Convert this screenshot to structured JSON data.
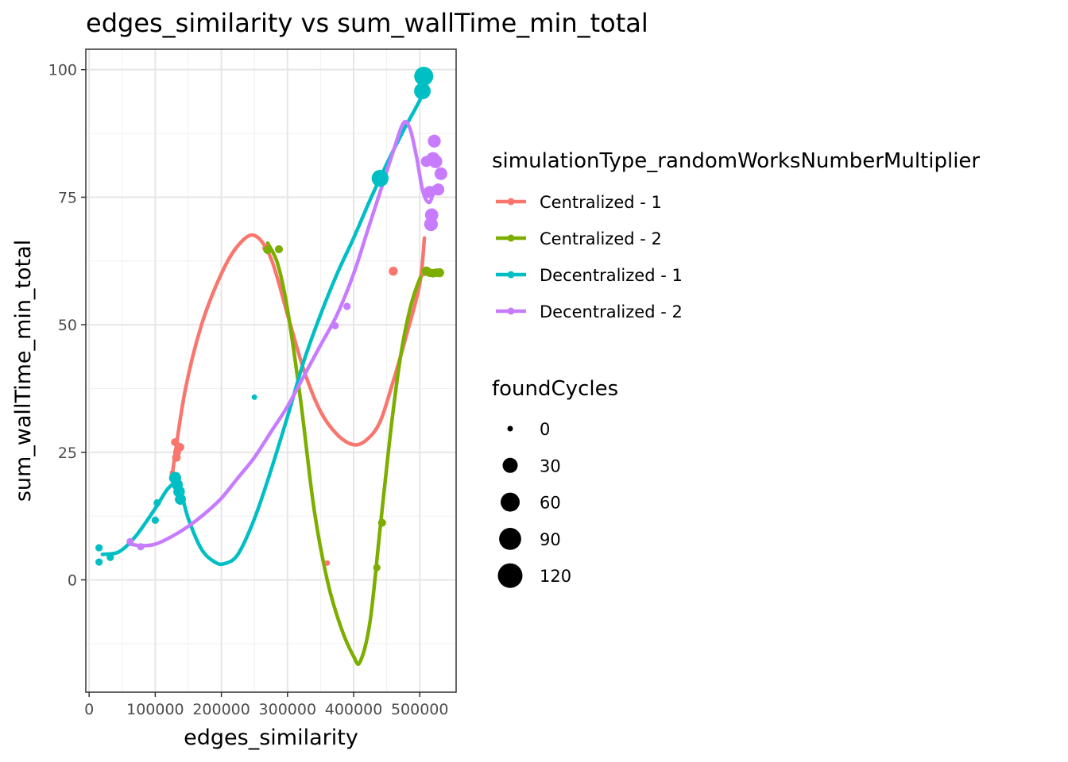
{
  "chart_data": {
    "type": "scatter",
    "title": "edges_similarity  vs  sum_wallTime_min_total",
    "xlabel": "edges_similarity",
    "ylabel": "sum_wallTime_min_total",
    "xlim": [
      -5000,
      555000
    ],
    "ylim": [
      -22,
      104
    ],
    "x_ticks": [
      0,
      100000,
      200000,
      300000,
      400000,
      500000
    ],
    "x_tick_labels": [
      "0",
      "100000",
      "200000",
      "300000",
      "400000",
      "500000"
    ],
    "y_ticks": [
      0,
      25,
      50,
      75,
      100
    ],
    "y_tick_labels": [
      "0",
      "25",
      "50",
      "75",
      "100"
    ],
    "grid": true,
    "legend_position": "right",
    "color_legend": {
      "title": "simulationType_randomWorksNumberMultiplier",
      "entries": [
        "Centralized - 1",
        "Centralized - 2",
        "Decentralized - 1",
        "Decentralized - 2"
      ]
    },
    "size_legend": {
      "title": "foundCycles",
      "values": [
        0,
        30,
        60,
        90,
        120
      ],
      "labels": [
        "0",
        "30",
        "60",
        "90",
        "120"
      ]
    },
    "series": [
      {
        "name": "Centralized - 1",
        "color": "#F8766D",
        "points": [
          [
            126000,
            21,
            0
          ],
          [
            130000,
            27,
            2
          ],
          [
            132000,
            24,
            3
          ],
          [
            133000,
            25,
            2
          ],
          [
            136000,
            26,
            4
          ],
          [
            138000,
            26,
            2
          ],
          [
            268000,
            65,
            2
          ],
          [
            360000,
            3.3,
            0
          ],
          [
            460000,
            60.5,
            4
          ],
          [
            505000,
            60,
            0
          ]
        ],
        "smooth": [
          [
            126000,
            21
          ],
          [
            145000,
            37
          ],
          [
            170000,
            50
          ],
          [
            200000,
            60
          ],
          [
            225000,
            65.5
          ],
          [
            250000,
            67.5
          ],
          [
            275000,
            63
          ],
          [
            300000,
            52
          ],
          [
            325000,
            41
          ],
          [
            350000,
            33
          ],
          [
            375000,
            28.5
          ],
          [
            400000,
            26.5
          ],
          [
            420000,
            27.5
          ],
          [
            440000,
            31
          ],
          [
            460000,
            39
          ],
          [
            480000,
            48
          ],
          [
            500000,
            58
          ],
          [
            507000,
            67
          ]
        ]
      },
      {
        "name": "Centralized - 2",
        "color": "#7CAE00",
        "points": [
          [
            270000,
            64.7,
            3
          ],
          [
            287000,
            64.8,
            2
          ],
          [
            435000,
            2.4,
            1
          ],
          [
            443000,
            11.2,
            2
          ],
          [
            510000,
            60.5,
            5
          ],
          [
            515000,
            60.2,
            3
          ],
          [
            520000,
            60.1,
            3
          ],
          [
            525000,
            60.2,
            3
          ],
          [
            530000,
            60.2,
            4
          ]
        ],
        "smooth": [
          [
            270000,
            66
          ],
          [
            285000,
            62
          ],
          [
            300000,
            53
          ],
          [
            320000,
            35
          ],
          [
            340000,
            14
          ],
          [
            360000,
            0
          ],
          [
            380000,
            -9
          ],
          [
            400000,
            -15
          ],
          [
            410000,
            -16
          ],
          [
            425000,
            -8
          ],
          [
            440000,
            10
          ],
          [
            455000,
            28
          ],
          [
            470000,
            43
          ],
          [
            485000,
            53
          ],
          [
            500000,
            59
          ],
          [
            510000,
            61
          ]
        ]
      },
      {
        "name": "Decentralized - 1",
        "color": "#00BFC4",
        "points": [
          [
            15000,
            6.3,
            1
          ],
          [
            15000,
            3.5,
            1
          ],
          [
            32000,
            4.4,
            1
          ],
          [
            100000,
            11.7,
            1
          ],
          [
            103000,
            15.1,
            1
          ],
          [
            130000,
            20,
            14
          ],
          [
            133000,
            18.7,
            11
          ],
          [
            136000,
            17.3,
            12
          ],
          [
            138000,
            15.8,
            10
          ],
          [
            250000,
            35.8,
            0
          ],
          [
            440000,
            78.7,
            43
          ],
          [
            504000,
            95.8,
            40
          ],
          [
            506000,
            98.7,
            60
          ]
        ],
        "smooth": [
          [
            20000,
            5
          ],
          [
            45000,
            5.5
          ],
          [
            70000,
            8.5
          ],
          [
            100000,
            14
          ],
          [
            120000,
            18
          ],
          [
            135000,
            18.5
          ],
          [
            150000,
            12
          ],
          [
            170000,
            6
          ],
          [
            190000,
            3.5
          ],
          [
            205000,
            3.2
          ],
          [
            225000,
            5
          ],
          [
            250000,
            12
          ],
          [
            275000,
            21.5
          ],
          [
            300000,
            32
          ],
          [
            325000,
            43
          ],
          [
            350000,
            52
          ],
          [
            375000,
            60
          ],
          [
            400000,
            67
          ],
          [
            425000,
            74.5
          ],
          [
            450000,
            81.5
          ],
          [
            475000,
            88
          ],
          [
            500000,
            94
          ],
          [
            512000,
            98
          ]
        ]
      },
      {
        "name": "Decentralized - 2",
        "color": "#C77CFF",
        "points": [
          [
            62000,
            7.5,
            1
          ],
          [
            78000,
            6.5,
            1
          ],
          [
            372000,
            49.8,
            1
          ],
          [
            390000,
            53.6,
            1
          ],
          [
            510000,
            82,
            10
          ],
          [
            515000,
            76,
            15
          ],
          [
            517000,
            69.7,
            22
          ],
          [
            518000,
            71.5,
            20
          ],
          [
            520000,
            82.5,
            22
          ],
          [
            522000,
            86,
            18
          ],
          [
            524000,
            82,
            20
          ],
          [
            528000,
            76.5,
            14
          ],
          [
            532000,
            79.6,
            17
          ]
        ],
        "smooth": [
          [
            62000,
            7
          ],
          [
            80000,
            6.7
          ],
          [
            100000,
            7
          ],
          [
            125000,
            8.5
          ],
          [
            150000,
            10.5
          ],
          [
            175000,
            13
          ],
          [
            200000,
            16
          ],
          [
            225000,
            20
          ],
          [
            250000,
            24
          ],
          [
            275000,
            29
          ],
          [
            300000,
            34
          ],
          [
            325000,
            40
          ],
          [
            350000,
            46
          ],
          [
            375000,
            52
          ],
          [
            400000,
            60
          ],
          [
            420000,
            68
          ],
          [
            440000,
            76
          ],
          [
            460000,
            84
          ],
          [
            475000,
            89.5
          ],
          [
            485000,
            88.5
          ],
          [
            495000,
            83
          ],
          [
            505000,
            76
          ],
          [
            515000,
            74
          ],
          [
            522000,
            77
          ]
        ]
      }
    ]
  }
}
